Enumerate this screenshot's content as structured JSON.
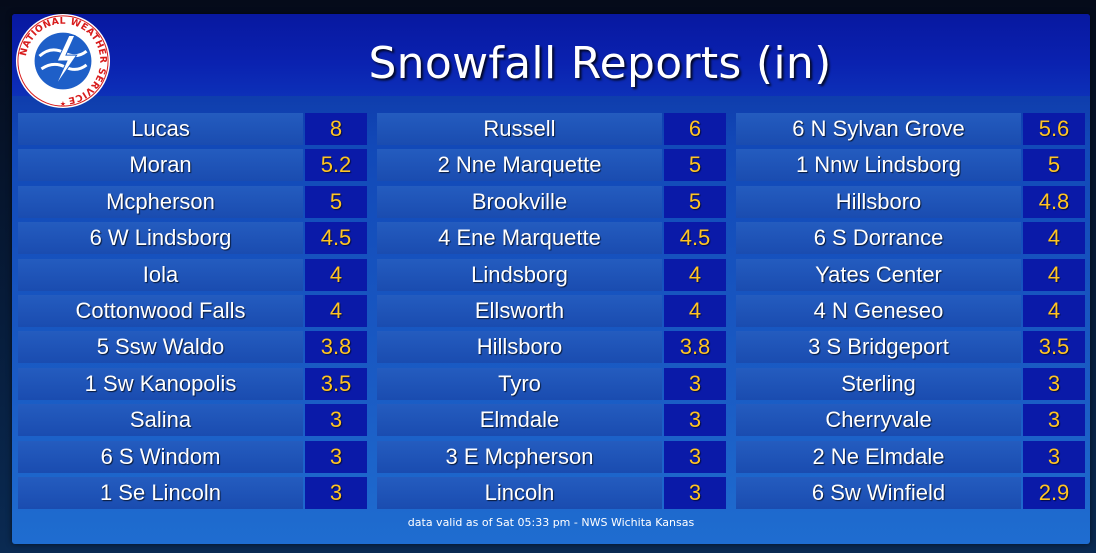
{
  "title": "Snowfall Reports (in)",
  "logo_text": "NATIONAL WEATHER SERVICE",
  "columns": [
    [
      {
        "name": "Lucas",
        "value": "8"
      },
      {
        "name": "Moran",
        "value": "5.2"
      },
      {
        "name": "Mcpherson",
        "value": "5"
      },
      {
        "name": "6 W Lindsborg",
        "value": "4.5"
      },
      {
        "name": "Iola",
        "value": "4"
      },
      {
        "name": "Cottonwood Falls",
        "value": "4"
      },
      {
        "name": "5 Ssw Waldo",
        "value": "3.8"
      },
      {
        "name": "1 Sw Kanopolis",
        "value": "3.5"
      },
      {
        "name": "Salina",
        "value": "3"
      },
      {
        "name": "6 S Windom",
        "value": "3"
      },
      {
        "name": "1 Se Lincoln",
        "value": "3"
      }
    ],
    [
      {
        "name": "Russell",
        "value": "6"
      },
      {
        "name": "2 Nne Marquette",
        "value": "5"
      },
      {
        "name": "Brookville",
        "value": "5"
      },
      {
        "name": "4 Ene Marquette",
        "value": "4.5"
      },
      {
        "name": "Lindsborg",
        "value": "4"
      },
      {
        "name": "Ellsworth",
        "value": "4"
      },
      {
        "name": "Hillsboro",
        "value": "3.8"
      },
      {
        "name": "Tyro",
        "value": "3"
      },
      {
        "name": "Elmdale",
        "value": "3"
      },
      {
        "name": "3 E Mcpherson",
        "value": "3"
      },
      {
        "name": "Lincoln",
        "value": "3"
      }
    ],
    [
      {
        "name": "6 N Sylvan Grove",
        "value": "5.6"
      },
      {
        "name": "1 Nnw Lindsborg",
        "value": "5"
      },
      {
        "name": "Hillsboro",
        "value": "4.8"
      },
      {
        "name": "6 S Dorrance",
        "value": "4"
      },
      {
        "name": "Yates Center",
        "value": "4"
      },
      {
        "name": "4 N Geneseo",
        "value": "4"
      },
      {
        "name": "3 S Bridgeport",
        "value": "3.5"
      },
      {
        "name": "Sterling",
        "value": "3"
      },
      {
        "name": "Cherryvale",
        "value": "3"
      },
      {
        "name": "2 Ne Elmdale",
        "value": "3"
      },
      {
        "name": "6 Sw Winfield",
        "value": "2.9"
      }
    ]
  ],
  "footer": "data valid as of Sat 05:33 pm - NWS Wichita Kansas",
  "colors": {
    "value_text": "#ffc422",
    "value_bg": "#0a1aa8",
    "name_bg": "#1f55b8",
    "header_bg": "#0a22b0"
  }
}
